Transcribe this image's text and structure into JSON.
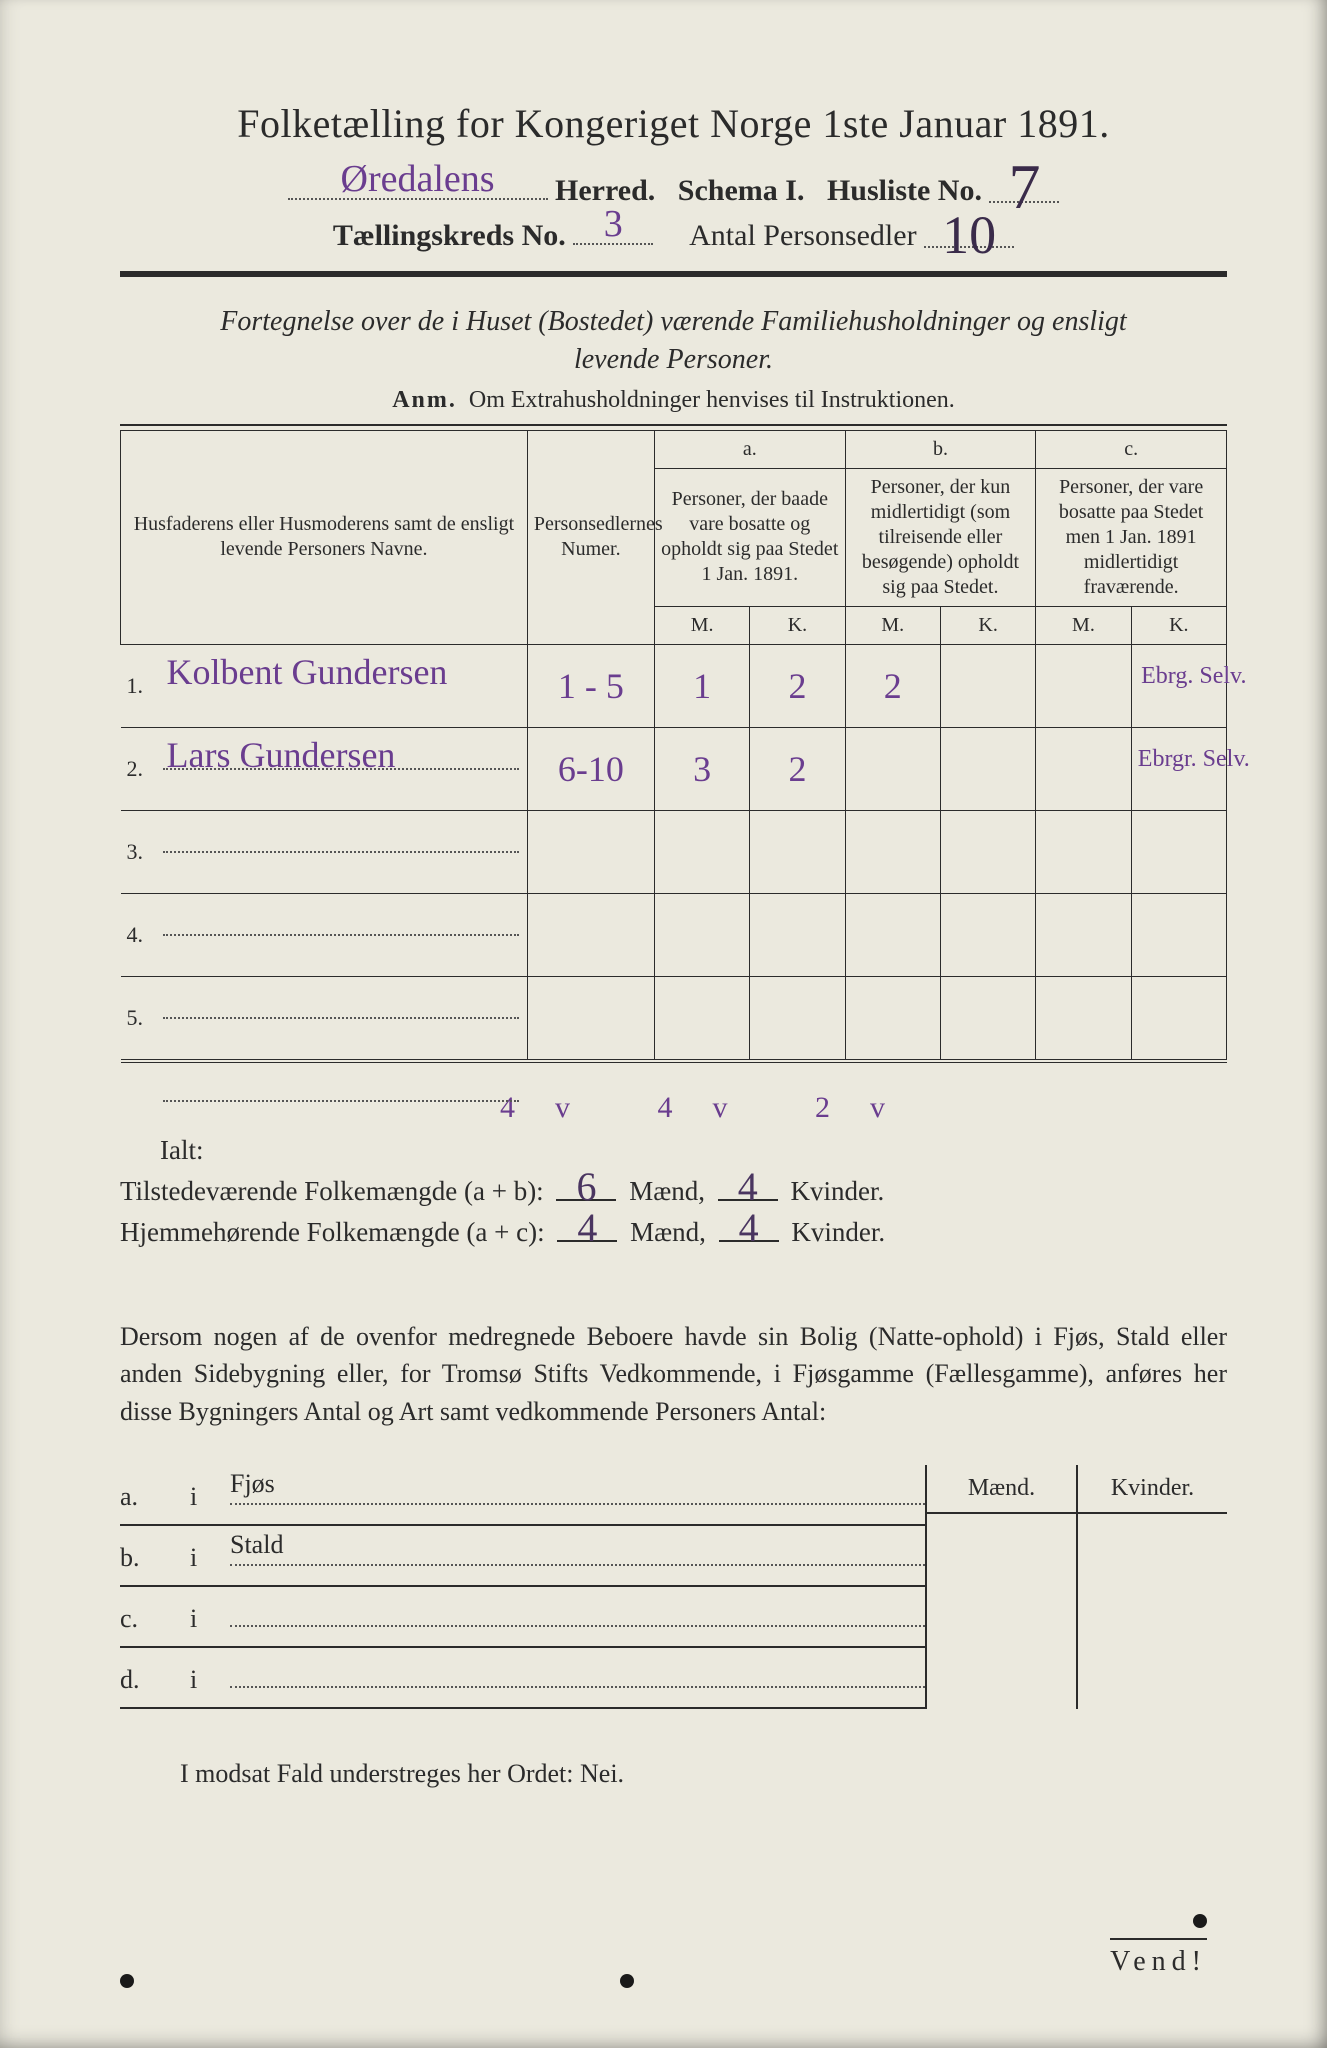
{
  "title": "Folketælling for Kongeriget Norge 1ste Januar 1891.",
  "line2": {
    "herred_value": "Øredalens",
    "herred_label": "Herred.",
    "schema_label": "Schema I.",
    "husliste_label": "Husliste No.",
    "husliste_value": "7"
  },
  "line3": {
    "kreds_label": "Tællingskreds No.",
    "kreds_value": "3",
    "antal_label": "Antal Personsedler",
    "antal_value": "10"
  },
  "subtitle1": "Fortegnelse over de i Huset (Bostedet) værende Familiehusholdninger og ensligt",
  "subtitle2": "levende Personer.",
  "anm_prefix": "Anm.",
  "anm_text": "Om Extrahusholdninger henvises til Instruktionen.",
  "table": {
    "head_name": "Husfaderens eller Husmoderens samt de ensligt levende Personers Navne.",
    "head_numer": "Personsedlernes Numer.",
    "col_a_letter": "a.",
    "col_a_text": "Personer, der baade vare bosatte og opholdt sig paa Stedet 1 Jan. 1891.",
    "col_b_letter": "b.",
    "col_b_text": "Personer, der kun midlertidigt (som tilreisende eller besøgende) opholdt sig paa Stedet.",
    "col_c_letter": "c.",
    "col_c_text": "Personer, der vare bosatte paa Stedet men 1 Jan. 1891 midlertidigt fraværende.",
    "m": "M.",
    "k": "K.",
    "rows": [
      {
        "n": "1.",
        "name": "Kolbent Gundersen",
        "numer": "1 - 5",
        "am": "1",
        "ak": "2",
        "bm": "2",
        "bk": "",
        "cm": "",
        "ck": "",
        "note": "Ebrg. Selv."
      },
      {
        "n": "2.",
        "name": "Lars Gundersen",
        "numer": "6-10",
        "am": "3",
        "ak": "2",
        "bm": "",
        "bk": "",
        "cm": "",
        "ck": "",
        "note": "Ebrgr. Selv."
      },
      {
        "n": "3.",
        "name": "",
        "numer": "",
        "am": "",
        "ak": "",
        "bm": "",
        "bk": "",
        "cm": "",
        "ck": "",
        "note": ""
      },
      {
        "n": "4.",
        "name": "",
        "numer": "",
        "am": "",
        "ak": "",
        "bm": "",
        "bk": "",
        "cm": "",
        "ck": "",
        "note": ""
      },
      {
        "n": "5.",
        "name": "",
        "numer": "",
        "am": "",
        "ak": "",
        "bm": "",
        "bk": "",
        "cm": "",
        "ck": "",
        "note": ""
      }
    ]
  },
  "totals": {
    "marks": "4v  4v  2v",
    "ialt": "Ialt:",
    "row1_label": "Tilstedeværende Folkemængde (a + b):",
    "row1_m": "6",
    "row1_k": "4",
    "row2_label": "Hjemmehørende Folkemængde (a + c):",
    "row2_m": "4",
    "row2_k": "4",
    "maend": "Mænd,",
    "kvinder": "Kvinder."
  },
  "para": "Dersom nogen af de ovenfor medregnede Beboere havde sin Bolig (Natte-ophold) i Fjøs, Stald eller anden Sidebygning eller, for Tromsø Stifts Vedkommende, i Fjøsgamme (Fællesgamme), anføres her disse Bygningers Antal og Art samt vedkommende Personers Antal:",
  "outb": {
    "maend": "Mænd.",
    "kvinder": "Kvinder.",
    "rows": [
      {
        "lab": "a.",
        "i": "i",
        "txt": "Fjøs"
      },
      {
        "lab": "b.",
        "i": "i",
        "txt": "Stald"
      },
      {
        "lab": "c.",
        "i": "i",
        "txt": ""
      },
      {
        "lab": "d.",
        "i": "i",
        "txt": ""
      }
    ]
  },
  "modsat": "I modsat Fald understreges her Ordet: Nei.",
  "vend": "Vend!",
  "colors": {
    "paper": "#ebe9de",
    "ink": "#2b2b2b",
    "handwriting": "#6a3d8f"
  }
}
